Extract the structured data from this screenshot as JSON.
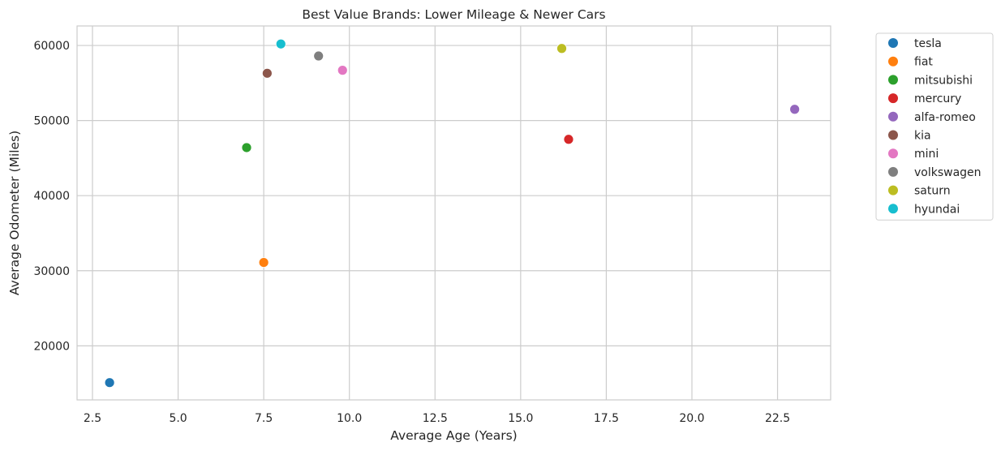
{
  "chart_data": {
    "type": "scatter",
    "title": "Best Value Brands: Lower Mileage & Newer Cars",
    "xlabel": "Average Age (Years)",
    "ylabel": "Average Odometer (Miles)",
    "xlim": [
      2.05,
      24.05
    ],
    "ylim": [
      12800,
      62600
    ],
    "xticks": [
      2.5,
      5.0,
      7.5,
      10.0,
      12.5,
      15.0,
      17.5,
      20.0,
      22.5
    ],
    "xtick_labels": [
      "2.5",
      "5.0",
      "7.5",
      "10.0",
      "12.5",
      "15.0",
      "17.5",
      "20.0",
      "22.5"
    ],
    "yticks": [
      20000,
      30000,
      40000,
      50000,
      60000
    ],
    "ytick_labels": [
      "20000",
      "30000",
      "40000",
      "50000",
      "60000"
    ],
    "grid": true,
    "legend_position": "outside-right-top",
    "series": [
      {
        "name": "tesla",
        "color": "#1f77b4",
        "x": 3.0,
        "y": 15100
      },
      {
        "name": "fiat",
        "color": "#ff7f0e",
        "x": 7.5,
        "y": 31100
      },
      {
        "name": "mitsubishi",
        "color": "#2ca02c",
        "x": 7.0,
        "y": 46400
      },
      {
        "name": "mercury",
        "color": "#d62728",
        "x": 16.4,
        "y": 47500
      },
      {
        "name": "alfa-romeo",
        "color": "#9467bd",
        "x": 23.0,
        "y": 51500
      },
      {
        "name": "kia",
        "color": "#8c564b",
        "x": 7.6,
        "y": 56300
      },
      {
        "name": "mini",
        "color": "#e377c2",
        "x": 9.8,
        "y": 56700
      },
      {
        "name": "volkswagen",
        "color": "#7f7f7f",
        "x": 9.1,
        "y": 58600
      },
      {
        "name": "saturn",
        "color": "#bcbd22",
        "x": 16.2,
        "y": 59600
      },
      {
        "name": "hyundai",
        "color": "#17becf",
        "x": 8.0,
        "y": 60200
      }
    ]
  }
}
